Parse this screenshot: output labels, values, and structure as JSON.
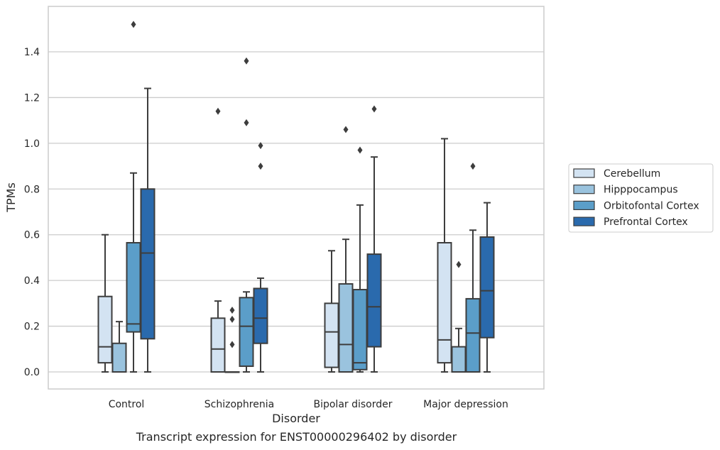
{
  "caption": "Transcript expression for ENST00000296402 by disorder",
  "chart_data": {
    "type": "box",
    "xlabel": "Disorder",
    "ylabel": "TPMs",
    "ylim": [
      -0.07,
      1.6
    ],
    "yticks": [
      0.0,
      0.2,
      0.4,
      0.6,
      0.8,
      1.0,
      1.2,
      1.4
    ],
    "ytick_labels": [
      "0.0",
      "0.2",
      "0.4",
      "0.6",
      "0.8",
      "1.0",
      "1.2",
      "1.4"
    ],
    "grid": "horizontal",
    "legend_position": "right",
    "categories": [
      "Control",
      "Schizophrenia",
      "Bipolar disorder",
      "Major depression"
    ],
    "series": [
      {
        "name": "Cerebellum",
        "color": "#d3e3f2",
        "boxes": [
          {
            "q1": 0.04,
            "median": 0.11,
            "q3": 0.33,
            "whislo": 0.0,
            "whishi": 0.6,
            "fliers": []
          },
          {
            "q1": 0.0,
            "median": 0.1,
            "q3": 0.235,
            "whislo": 0.0,
            "whishi": 0.31,
            "fliers": [
              1.14
            ]
          },
          {
            "q1": 0.02,
            "median": 0.175,
            "q3": 0.3,
            "whislo": 0.0,
            "whishi": 0.53,
            "fliers": []
          },
          {
            "q1": 0.04,
            "median": 0.14,
            "q3": 0.565,
            "whislo": 0.0,
            "whishi": 1.02,
            "fliers": []
          }
        ]
      },
      {
        "name": "Hipppocampus",
        "color": "#9ac3de",
        "boxes": [
          {
            "q1": 0.0,
            "median": 0.0,
            "q3": 0.125,
            "whislo": 0.0,
            "whishi": 0.22,
            "fliers": []
          },
          {
            "q1": 0.0,
            "median": 0.0,
            "q3": 0.0,
            "whislo": 0.0,
            "whishi": 0.0,
            "fliers": [
              0.12,
              0.23,
              0.27
            ]
          },
          {
            "q1": 0.0,
            "median": 0.12,
            "q3": 0.385,
            "whislo": 0.0,
            "whishi": 0.58,
            "fliers": [
              1.06
            ]
          },
          {
            "q1": 0.0,
            "median": 0.0,
            "q3": 0.11,
            "whislo": 0.0,
            "whishi": 0.19,
            "fliers": [
              0.47
            ]
          }
        ]
      },
      {
        "name": "Orbitofontal Cortex",
        "color": "#5b9ec9",
        "boxes": [
          {
            "q1": 0.175,
            "median": 0.21,
            "q3": 0.565,
            "whislo": 0.0,
            "whishi": 0.87,
            "fliers": [
              1.52
            ]
          },
          {
            "q1": 0.025,
            "median": 0.2,
            "q3": 0.325,
            "whislo": 0.0,
            "whishi": 0.35,
            "fliers": [
              1.09,
              1.36
            ]
          },
          {
            "q1": 0.01,
            "median": 0.04,
            "q3": 0.36,
            "whislo": 0.0,
            "whishi": 0.73,
            "fliers": [
              0.97
            ]
          },
          {
            "q1": 0.0,
            "median": 0.17,
            "q3": 0.32,
            "whislo": 0.0,
            "whishi": 0.62,
            "fliers": [
              0.9
            ]
          }
        ]
      },
      {
        "name": "Prefrontal Cortex",
        "color": "#2a6aad",
        "boxes": [
          {
            "q1": 0.145,
            "median": 0.52,
            "q3": 0.8,
            "whislo": 0.0,
            "whishi": 1.24,
            "fliers": []
          },
          {
            "q1": 0.125,
            "median": 0.235,
            "q3": 0.365,
            "whislo": 0.0,
            "whishi": 0.41,
            "fliers": [
              0.9,
              0.99
            ]
          },
          {
            "q1": 0.11,
            "median": 0.285,
            "q3": 0.515,
            "whislo": 0.0,
            "whishi": 0.94,
            "fliers": [
              1.15
            ]
          },
          {
            "q1": 0.15,
            "median": 0.355,
            "q3": 0.59,
            "whislo": 0.0,
            "whishi": 0.74,
            "fliers": []
          }
        ]
      }
    ]
  }
}
